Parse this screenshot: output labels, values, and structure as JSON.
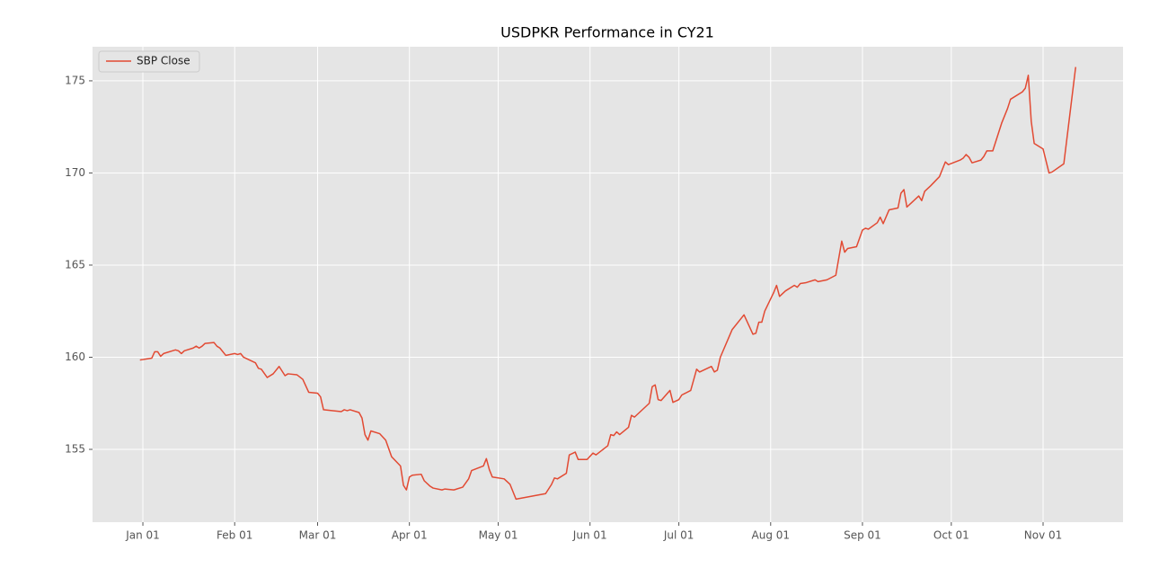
{
  "chart_data": {
    "type": "line",
    "title": "USDPKR Performance in CY21",
    "x": [
      "Dec 31",
      "Jan 04",
      "Jan 05",
      "Jan 06",
      "Jan 07",
      "Jan 08",
      "Jan 11",
      "Jan 12",
      "Jan 13",
      "Jan 14",
      "Jan 15",
      "Jan 18",
      "Jan 19",
      "Jan 20",
      "Jan 21",
      "Jan 22",
      "Jan 25",
      "Jan 26",
      "Jan 27",
      "Jan 29",
      "Feb 01",
      "Feb 02",
      "Feb 03",
      "Feb 04",
      "Feb 08",
      "Feb 09",
      "Feb 10",
      "Feb 12",
      "Feb 14",
      "Feb 16",
      "Feb 18",
      "Feb 19",
      "Feb 22",
      "Feb 24",
      "Feb 26",
      "Mar 01",
      "Mar 02",
      "Mar 03",
      "Mar 09",
      "Mar 10",
      "Mar 11",
      "Mar 12",
      "Mar 15",
      "Mar 16",
      "Mar 17",
      "Mar 18",
      "Mar 19",
      "Mar 22",
      "Mar 24",
      "Mar 26",
      "Mar 29",
      "Mar 30",
      "Mar 31",
      "Apr 01",
      "Apr 02",
      "Apr 05",
      "Apr 06",
      "Apr 08",
      "Apr 09",
      "Apr 12",
      "Apr 13",
      "Apr 16",
      "Apr 19",
      "Apr 21",
      "Apr 22",
      "Apr 26",
      "Apr 27",
      "Apr 28",
      "Apr 29",
      "May 03",
      "May 05",
      "May 07",
      "May 17",
      "May 19",
      "May 20",
      "May 21",
      "May 24",
      "May 25",
      "May 27",
      "May 28",
      "May 31",
      "Jun 02",
      "Jun 03",
      "Jun 07",
      "Jun 08",
      "Jun 09",
      "Jun 10",
      "Jun 11",
      "Jun 14",
      "Jun 15",
      "Jun 16",
      "Jun 21",
      "Jun 22",
      "Jun 23",
      "Jun 24",
      "Jun 25",
      "Jun 28",
      "Jun 29",
      "Jul 01",
      "Jul 02",
      "Jul 05",
      "Jul 07",
      "Jul 08",
      "Jul 12",
      "Jul 13",
      "Jul 14",
      "Jul 15",
      "Jul 19",
      "Jul 23",
      "Jul 26",
      "Jul 27",
      "Jul 28",
      "Jul 29",
      "Jul 30",
      "Aug 02",
      "Aug 03",
      "Aug 04",
      "Aug 06",
      "Aug 09",
      "Aug 10",
      "Aug 11",
      "Aug 13",
      "Aug 16",
      "Aug 17",
      "Aug 20",
      "Aug 23",
      "Aug 25",
      "Aug 26",
      "Aug 27",
      "Aug 30",
      "Sep 01",
      "Sep 02",
      "Sep 03",
      "Sep 06",
      "Sep 07",
      "Sep 08",
      "Sep 10",
      "Sep 13",
      "Sep 14",
      "Sep 15",
      "Sep 16",
      "Sep 17",
      "Sep 20",
      "Sep 21",
      "Sep 22",
      "Sep 24",
      "Sep 27",
      "Sep 29",
      "Sep 30",
      "Oct 04",
      "Oct 05",
      "Oct 06",
      "Oct 07",
      "Oct 08",
      "Oct 11",
      "Oct 12",
      "Oct 13",
      "Oct 15",
      "Oct 18",
      "Oct 20",
      "Oct 21",
      "Oct 25",
      "Oct 26",
      "Oct 27",
      "Oct 28",
      "Oct 29",
      "Nov 01",
      "Nov 03",
      "Nov 04",
      "Nov 08",
      "Nov 12"
    ],
    "series": [
      {
        "name": "SBP Close",
        "color": "#e24a33",
        "values": [
          159.85,
          159.95,
          160.3,
          160.3,
          160.05,
          160.2,
          160.35,
          160.4,
          160.35,
          160.2,
          160.35,
          160.5,
          160.6,
          160.5,
          160.6,
          160.75,
          160.8,
          160.6,
          160.5,
          160.1,
          160.2,
          160.15,
          160.2,
          160.0,
          159.7,
          159.4,
          159.35,
          158.9,
          159.1,
          159.5,
          159.0,
          159.1,
          159.05,
          158.8,
          158.1,
          158.05,
          157.85,
          157.15,
          157.05,
          157.15,
          157.1,
          157.15,
          157.0,
          156.7,
          155.8,
          155.5,
          156.0,
          155.85,
          155.5,
          154.6,
          154.1,
          153.05,
          152.8,
          153.5,
          153.6,
          153.65,
          153.3,
          153.0,
          152.9,
          152.8,
          152.85,
          152.8,
          152.95,
          153.4,
          153.85,
          154.1,
          154.5,
          153.9,
          153.5,
          153.4,
          153.1,
          152.3,
          152.6,
          153.1,
          153.45,
          153.4,
          153.7,
          154.7,
          154.85,
          154.45,
          154.45,
          154.8,
          154.7,
          155.2,
          155.8,
          155.75,
          155.95,
          155.8,
          156.2,
          156.85,
          156.75,
          157.5,
          158.4,
          158.5,
          157.7,
          157.65,
          158.2,
          157.55,
          157.7,
          157.95,
          158.2,
          159.35,
          159.2,
          159.5,
          159.2,
          159.3,
          160.0,
          161.5,
          162.3,
          161.25,
          161.3,
          161.9,
          161.9,
          162.5,
          163.5,
          163.9,
          163.3,
          163.6,
          163.9,
          163.8,
          164.0,
          164.05,
          164.2,
          164.1,
          164.2,
          164.45,
          166.3,
          165.7,
          165.9,
          166.0,
          166.9,
          167.0,
          166.95,
          167.3,
          167.6,
          167.25,
          168.0,
          168.1,
          168.9,
          169.1,
          168.15,
          168.3,
          168.75,
          168.5,
          169.0,
          169.3,
          169.8,
          170.6,
          170.45,
          170.7,
          170.8,
          171.0,
          170.85,
          170.55,
          170.7,
          170.9,
          171.2,
          171.2,
          172.7,
          173.5,
          174.0,
          174.4,
          174.6,
          175.3,
          172.8,
          171.6,
          171.3,
          170.0,
          170.05,
          170.5,
          175.75
        ]
      }
    ],
    "xlim": [
      "Dec 15",
      "Nov 28"
    ],
    "xticks": [
      "Jan 01",
      "Feb 01",
      "Mar 01",
      "Apr 01",
      "May 01",
      "Jun 01",
      "Jul 01",
      "Aug 01",
      "Sep 01",
      "Oct 01",
      "Nov 01"
    ],
    "ylim": [
      151.05,
      176.85
    ],
    "yticks": [
      155,
      160,
      165,
      170,
      175
    ],
    "grid": true,
    "legend": "upper left"
  }
}
